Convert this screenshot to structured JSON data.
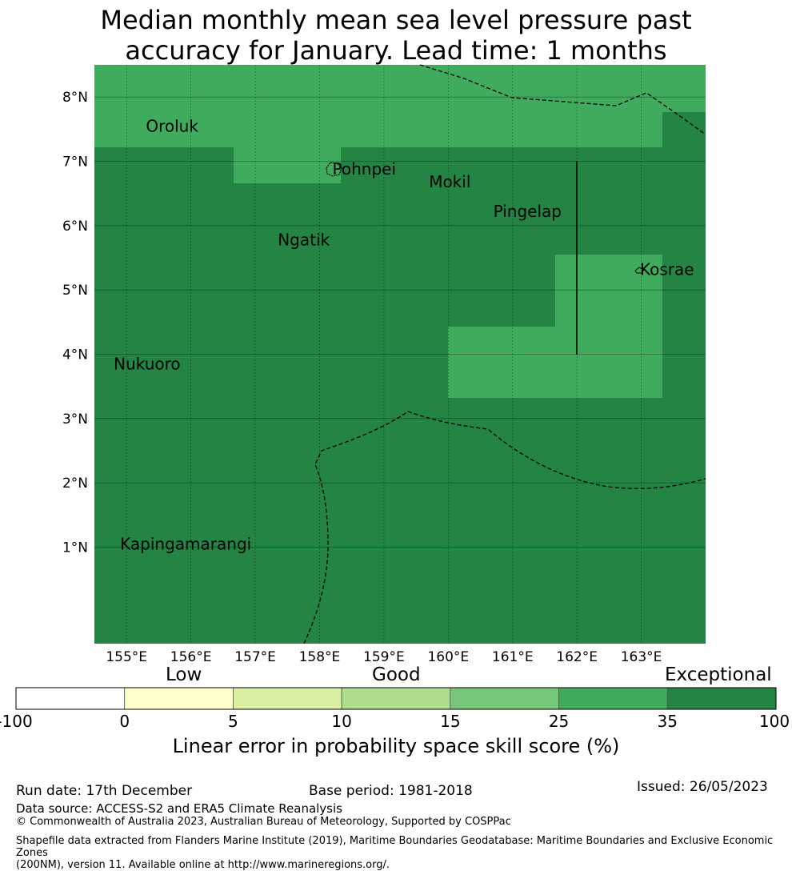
{
  "title_line1": "Median monthly mean sea level pressure past",
  "title_line2": "accuracy for January. Lead time: 1 months",
  "map": {
    "lon_ticks": [
      "155°E",
      "156°E",
      "157°E",
      "158°E",
      "159°E",
      "160°E",
      "161°E",
      "162°E",
      "163°E"
    ],
    "lat_ticks": [
      "8°N",
      "7°N",
      "6°N",
      "5°N",
      "4°N",
      "3°N",
      "2°N",
      "1°N"
    ],
    "places": [
      {
        "name": "Oroluk",
        "lon": 155.3,
        "lat": 7.55
      },
      {
        "name": "Pohnpei",
        "lon": 158.2,
        "lat": 6.88
      },
      {
        "name": "Mokil",
        "lon": 159.7,
        "lat": 6.68
      },
      {
        "name": "Pingelap",
        "lon": 160.7,
        "lat": 6.22
      },
      {
        "name": "Ngatik",
        "lon": 157.35,
        "lat": 5.78
      },
      {
        "name": "Kosrae",
        "lon": 162.98,
        "lat": 5.32
      },
      {
        "name": "Nukuoro",
        "lon": 154.8,
        "lat": 3.85
      },
      {
        "name": "Kapingamarangi",
        "lon": 154.9,
        "lat": 1.05
      }
    ],
    "colors": {
      "class_25_35": "#41ab5d",
      "class_35_100": "#238443"
    }
  },
  "colorbar": {
    "labels_top": {
      "low": "Low",
      "good": "Good",
      "exceptional": "Exceptional"
    },
    "ticks": [
      "-100",
      "0",
      "5",
      "10",
      "15",
      "25",
      "35",
      "100"
    ],
    "colors": [
      "#ffffff",
      "#ffffcc",
      "#d9f0a3",
      "#addd8e",
      "#78c679",
      "#41ab5d",
      "#238443"
    ],
    "title": "Linear error in probability space skill score (%)"
  },
  "footer": {
    "run_date": "Run date: 17th December",
    "base_period": "Base period: 1981-2018",
    "issued": "Issued: 26/05/2023",
    "data_source": "Data source: ACCESS-S2 and ERA5 Climate Reanalysis",
    "copyright": "© Commonwealth of Australia 2023, Australian Bureau of Meteorology, Supported by COSPPac",
    "shapefile_line1": "Shapefile data extracted from Flanders Marine Institute (2019), Maritime Boundaries Geodatabase: Maritime Boundaries and Exclusive Economic Zones",
    "shapefile_line2": "(200NM), version 11. Available online at http://www.marineregions.org/."
  }
}
